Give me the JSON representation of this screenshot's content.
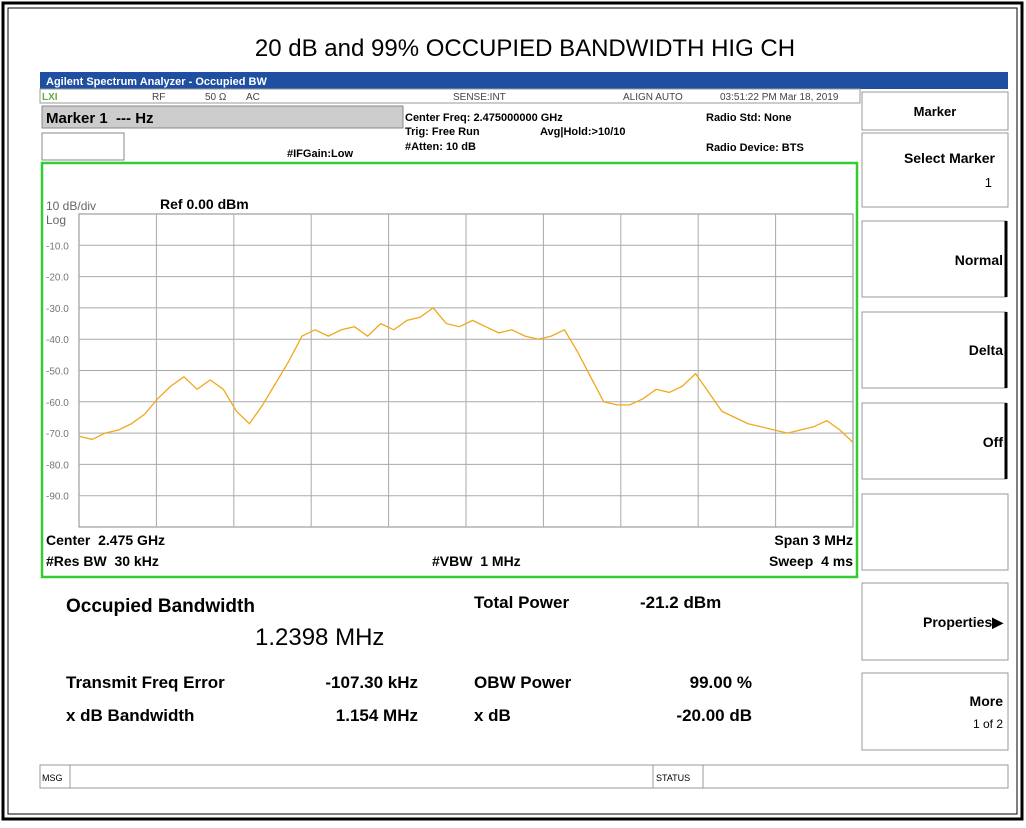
{
  "title": "20 dB and 99% OCCUPIED BANDWIDTH HIG CH",
  "app_title": "Agilent Spectrum Analyzer - Occupied BW",
  "status": {
    "rf": "RF",
    "impedance": "50 Ω",
    "coupling": "AC",
    "sense": "SENSE:INT",
    "align": "ALIGN AUTO",
    "datetime": "03:51:22 PM Mar 18, 2019"
  },
  "marker": "Marker 1  --- Hz",
  "settings": {
    "center_freq": "Center Freq: 2.475000000 GHz",
    "trig": "Trig: Free Run",
    "avg": "Avg|Hold:>10/10",
    "atten": "#Atten: 10 dB",
    "ifgain": "#IFGain:Low",
    "radio_std": "Radio Std: None",
    "radio_device": "Radio Device: BTS"
  },
  "scale": {
    "div": "10 dB/div",
    "ref": "Ref 0.00 dBm",
    "log": "Log"
  },
  "footer": {
    "center": "Center  2.475 GHz",
    "res_bw": "#Res BW  30 kHz",
    "vbw": "#VBW  1 MHz",
    "span": "Span 3 MHz",
    "sweep": "Sweep  4 ms"
  },
  "trace": {
    "color": "#f0a81c",
    "ylim": [
      -100,
      0
    ],
    "yticks": [
      {
        "value": -10,
        "label": "-10.0"
      },
      {
        "value": -20,
        "label": "-20.0"
      },
      {
        "value": -30,
        "label": "-30.0"
      },
      {
        "value": -40,
        "label": "-40.0"
      },
      {
        "value": -50,
        "label": "-50.0"
      },
      {
        "value": -60,
        "label": "-60.0"
      },
      {
        "value": -70,
        "label": "-70.0"
      },
      {
        "value": -80,
        "label": "-80.0"
      },
      {
        "value": -90,
        "label": "-90.0"
      }
    ],
    "values": [
      -71,
      -72,
      -70,
      -69,
      -67,
      -64,
      -59,
      -55,
      -52,
      -56,
      -53,
      -56,
      -63,
      -67,
      -61,
      -54,
      -47,
      -39,
      -37,
      -39,
      -37,
      -36,
      -39,
      -35,
      -37,
      -34,
      -33,
      -30,
      -35,
      -36,
      -34,
      -36,
      -38,
      -37,
      -39,
      -40,
      -39,
      -37,
      -44,
      -52,
      -60,
      -61,
      -61,
      -59,
      -56,
      -57,
      -55,
      -51,
      -57,
      -63,
      -65,
      -67,
      -68,
      -69,
      -70,
      -69,
      -68,
      -66,
      -69,
      -73
    ]
  },
  "results": {
    "obw_label": "Occupied Bandwidth",
    "obw_value": "1.2398 MHz",
    "total_power_label": "Total Power",
    "total_power": "-21.2 dBm",
    "tfe_label": "Transmit Freq Error",
    "tfe": "-107.30 kHz",
    "obw_power_label": "OBW Power",
    "obw_power": "99.00 %",
    "xdb_bw_label": "x dB Bandwidth",
    "xdb_bw": "1.154 MHz",
    "xdb_label": "x dB",
    "xdb": "-20.00 dB"
  },
  "softkeys": {
    "menu": "Marker",
    "select": "Select Marker",
    "select_value": "1",
    "normal": "Normal",
    "delta": "Delta",
    "off": "Off",
    "properties": "Properties▶",
    "more": "More",
    "more_page": "1 of 2"
  },
  "statusbar": {
    "msg": "MSG",
    "status": "STATUS"
  }
}
